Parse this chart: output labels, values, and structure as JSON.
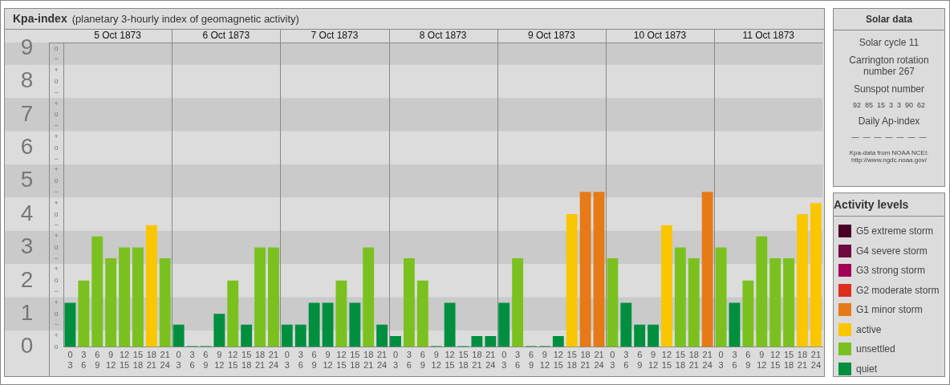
{
  "chart_data": {
    "type": "bar",
    "title": "Kpa-index",
    "subtitle": "(planetary 3-hourly index of geomagnetic activity)",
    "legend_title": "Activity levels",
    "legend": "right",
    "grid": "x",
    "categories": [
      "0\n3",
      "3\n6",
      "6\n9",
      "9\n12",
      "12\n15",
      "15\n18",
      "18\n21",
      "21\n24",
      "0\n3",
      "3\n6",
      "6\n9",
      "9\n12",
      "12\n15",
      "15\n18",
      "18\n21",
      "21\n24",
      "0\n3",
      "3\n6",
      "6\n9",
      "9\n12",
      "12\n15",
      "15\n18",
      "18\n21",
      "21\n24",
      "0\n3",
      "3\n6",
      "6\n9",
      "9\n12",
      "12\n15",
      "15\n18",
      "18\n21",
      "21\n24",
      "0\n3",
      "3\n6",
      "6\n9",
      "9\n12",
      "12\n15",
      "15\n18",
      "18\n21",
      "21\n24",
      "0\n3",
      "3\n6",
      "6\n9",
      "9\n12",
      "12\n15",
      "15\n18",
      "18\n21",
      "21\n24",
      "0\n3",
      "3\n6",
      "6\n9",
      "9\n12",
      "12\n15",
      "15\n18",
      "18\n21",
      "21\n24"
    ],
    "series": [
      {
        "name": "G5 extreme storm",
        "color": "#4a0026",
        "values": [
          null,
          null,
          null,
          null,
          null,
          null,
          null,
          null,
          null,
          null,
          null,
          null,
          null,
          null,
          null,
          null,
          null,
          null,
          null,
          null,
          null,
          null,
          null,
          null,
          null,
          null,
          null,
          null,
          null,
          null,
          null,
          null,
          null,
          null,
          null,
          null,
          null,
          null,
          null,
          null,
          null,
          null,
          null,
          null,
          null,
          null,
          null,
          null,
          null,
          null,
          null,
          null,
          null,
          null,
          null,
          null
        ]
      },
      {
        "name": "G4 severe storm",
        "color": "#6d0a40",
        "values": [
          null,
          null,
          null,
          null,
          null,
          null,
          null,
          null,
          null,
          null,
          null,
          null,
          null,
          null,
          null,
          null,
          null,
          null,
          null,
          null,
          null,
          null,
          null,
          null,
          null,
          null,
          null,
          null,
          null,
          null,
          null,
          null,
          null,
          null,
          null,
          null,
          null,
          null,
          null,
          null,
          null,
          null,
          null,
          null,
          null,
          null,
          null,
          null,
          null,
          null,
          null,
          null,
          null,
          null,
          null,
          null
        ]
      },
      {
        "name": "G3 strong storm",
        "color": "#a3005a",
        "values": [
          null,
          null,
          null,
          null,
          null,
          null,
          null,
          null,
          null,
          null,
          null,
          null,
          null,
          null,
          null,
          null,
          null,
          null,
          null,
          null,
          null,
          null,
          null,
          null,
          null,
          null,
          null,
          null,
          null,
          null,
          null,
          null,
          null,
          null,
          null,
          null,
          null,
          null,
          null,
          null,
          null,
          null,
          null,
          null,
          null,
          null,
          null,
          null,
          null,
          null,
          null,
          null,
          null,
          null,
          null,
          null
        ]
      },
      {
        "name": "G2 moderate storm",
        "color": "#dd2e1e",
        "values": [
          null,
          null,
          null,
          null,
          null,
          null,
          null,
          null,
          null,
          null,
          null,
          null,
          null,
          null,
          null,
          null,
          null,
          null,
          null,
          null,
          null,
          null,
          null,
          null,
          null,
          null,
          null,
          null,
          null,
          null,
          null,
          null,
          null,
          null,
          null,
          null,
          null,
          null,
          null,
          null,
          null,
          null,
          null,
          null,
          null,
          null,
          null,
          null,
          null,
          null,
          null,
          null,
          null,
          null,
          null,
          null
        ]
      },
      {
        "name": "G1 minor storm",
        "color": "#e57a17",
        "values": [
          null,
          null,
          null,
          null,
          null,
          null,
          null,
          null,
          null,
          null,
          null,
          null,
          null,
          null,
          null,
          null,
          null,
          null,
          null,
          null,
          null,
          null,
          null,
          null,
          null,
          null,
          null,
          null,
          null,
          null,
          null,
          null,
          null,
          null,
          null,
          null,
          null,
          null,
          4.67,
          4.67,
          null,
          null,
          null,
          null,
          null,
          null,
          null,
          4.67,
          null,
          null,
          null,
          null,
          null,
          null,
          null,
          null
        ]
      },
      {
        "name": "active",
        "color": "#f9c600",
        "values": [
          null,
          null,
          null,
          null,
          null,
          null,
          3.67,
          null,
          null,
          null,
          null,
          null,
          null,
          null,
          null,
          null,
          null,
          null,
          null,
          null,
          null,
          null,
          null,
          null,
          null,
          null,
          null,
          null,
          null,
          null,
          null,
          null,
          null,
          null,
          null,
          null,
          null,
          4,
          null,
          null,
          null,
          null,
          null,
          null,
          3.67,
          null,
          null,
          null,
          null,
          null,
          null,
          null,
          null,
          null,
          4,
          4.33
        ]
      },
      {
        "name": "unsettled",
        "color": "#7ac11f",
        "values": [
          null,
          2,
          3.33,
          2.67,
          3,
          3,
          null,
          2.67,
          null,
          null,
          null,
          null,
          2,
          null,
          3,
          3,
          null,
          null,
          null,
          null,
          2,
          null,
          3,
          null,
          null,
          2.67,
          2,
          null,
          null,
          null,
          null,
          null,
          null,
          2.67,
          null,
          null,
          null,
          null,
          null,
          null,
          2.67,
          null,
          null,
          null,
          null,
          3,
          2.67,
          null,
          3,
          null,
          2,
          3.33,
          2.67,
          2.67,
          null,
          null
        ]
      },
      {
        "name": "quiet",
        "color": "#008f3f",
        "values": [
          1.33,
          null,
          null,
          null,
          null,
          null,
          null,
          null,
          0.67,
          0,
          0,
          1,
          null,
          0.67,
          null,
          null,
          0.67,
          0.67,
          1.33,
          1.33,
          null,
          1.33,
          null,
          0.67,
          0.33,
          null,
          null,
          0,
          1.33,
          0,
          0.33,
          0.33,
          1.33,
          null,
          0,
          0,
          0.33,
          null,
          null,
          null,
          null,
          1.33,
          0.67,
          0.67,
          null,
          null,
          null,
          null,
          null,
          1.33,
          null,
          null,
          null,
          null,
          null,
          null
        ]
      }
    ],
    "ylim": [
      0,
      9.17
    ],
    "yticks": [
      0,
      1,
      2,
      3,
      4,
      5,
      6,
      7,
      8,
      9
    ],
    "x2lim": [
      "1873-10-05",
      "1873-10-12"
    ],
    "x2ticks": [
      {
        "value": "1873-10-05T12:00",
        "label": "5 Oct 1873"
      },
      {
        "value": "1873-10-06",
        "label": null
      },
      {
        "value": "1873-10-06T12:00",
        "label": "6 Oct 1873"
      },
      {
        "value": "1873-10-07",
        "label": null
      },
      {
        "value": "1873-10-07T12:00",
        "label": "7 Oct 1873"
      },
      {
        "value": "1873-10-08",
        "label": null
      },
      {
        "value": "1873-10-08T12:00",
        "label": "8 Oct 1873"
      },
      {
        "value": "1873-10-09",
        "label": null
      },
      {
        "value": "1873-10-09T12:00",
        "label": "9 Oct 1873"
      },
      {
        "value": "1873-10-10",
        "label": null
      },
      {
        "value": "1873-10-10T12:00",
        "label": "10 Oct 1873"
      },
      {
        "value": "1873-10-11",
        "label": null
      },
      {
        "value": "1873-10-11T12:00",
        "label": "11 Oct 1873"
      }
    ],
    "bands": [
      {
        "axis": "y",
        "from": 0.5,
        "to": 1.5,
        "color": "#cacaca"
      },
      {
        "axis": "y",
        "from": 2.5,
        "to": 3.5,
        "color": "#cacaca"
      },
      {
        "axis": "y",
        "from": 4.5,
        "to": 5.5,
        "color": "#cacaca"
      },
      {
        "axis": "y",
        "from": 6.5,
        "to": 7.5,
        "color": "#cacaca"
      },
      {
        "axis": "y",
        "from": 8.5,
        "to": 9.17,
        "color": "#cacaca"
      }
    ],
    "annotations": [
      "Solar data",
      "Solar cycle 11",
      "Carrington rotation number 267",
      "Sunspot number",
      "92  85  15  3  3  90  62",
      "Daily Ap-index",
      "—  —  —  —  —  —  —",
      "Kpa-data from NOAA NCEI: http://www.ngdc.noaa.gov/",
      "o",
      "+",
      "−",
      "o",
      "+",
      "−",
      "o",
      "+",
      "−",
      "o",
      "+",
      "−",
      "o",
      "+",
      "−",
      "o",
      "+",
      "−",
      "o",
      "+",
      "−",
      "o",
      "+",
      "−",
      "o",
      "+",
      "−",
      "o"
    ]
  }
}
